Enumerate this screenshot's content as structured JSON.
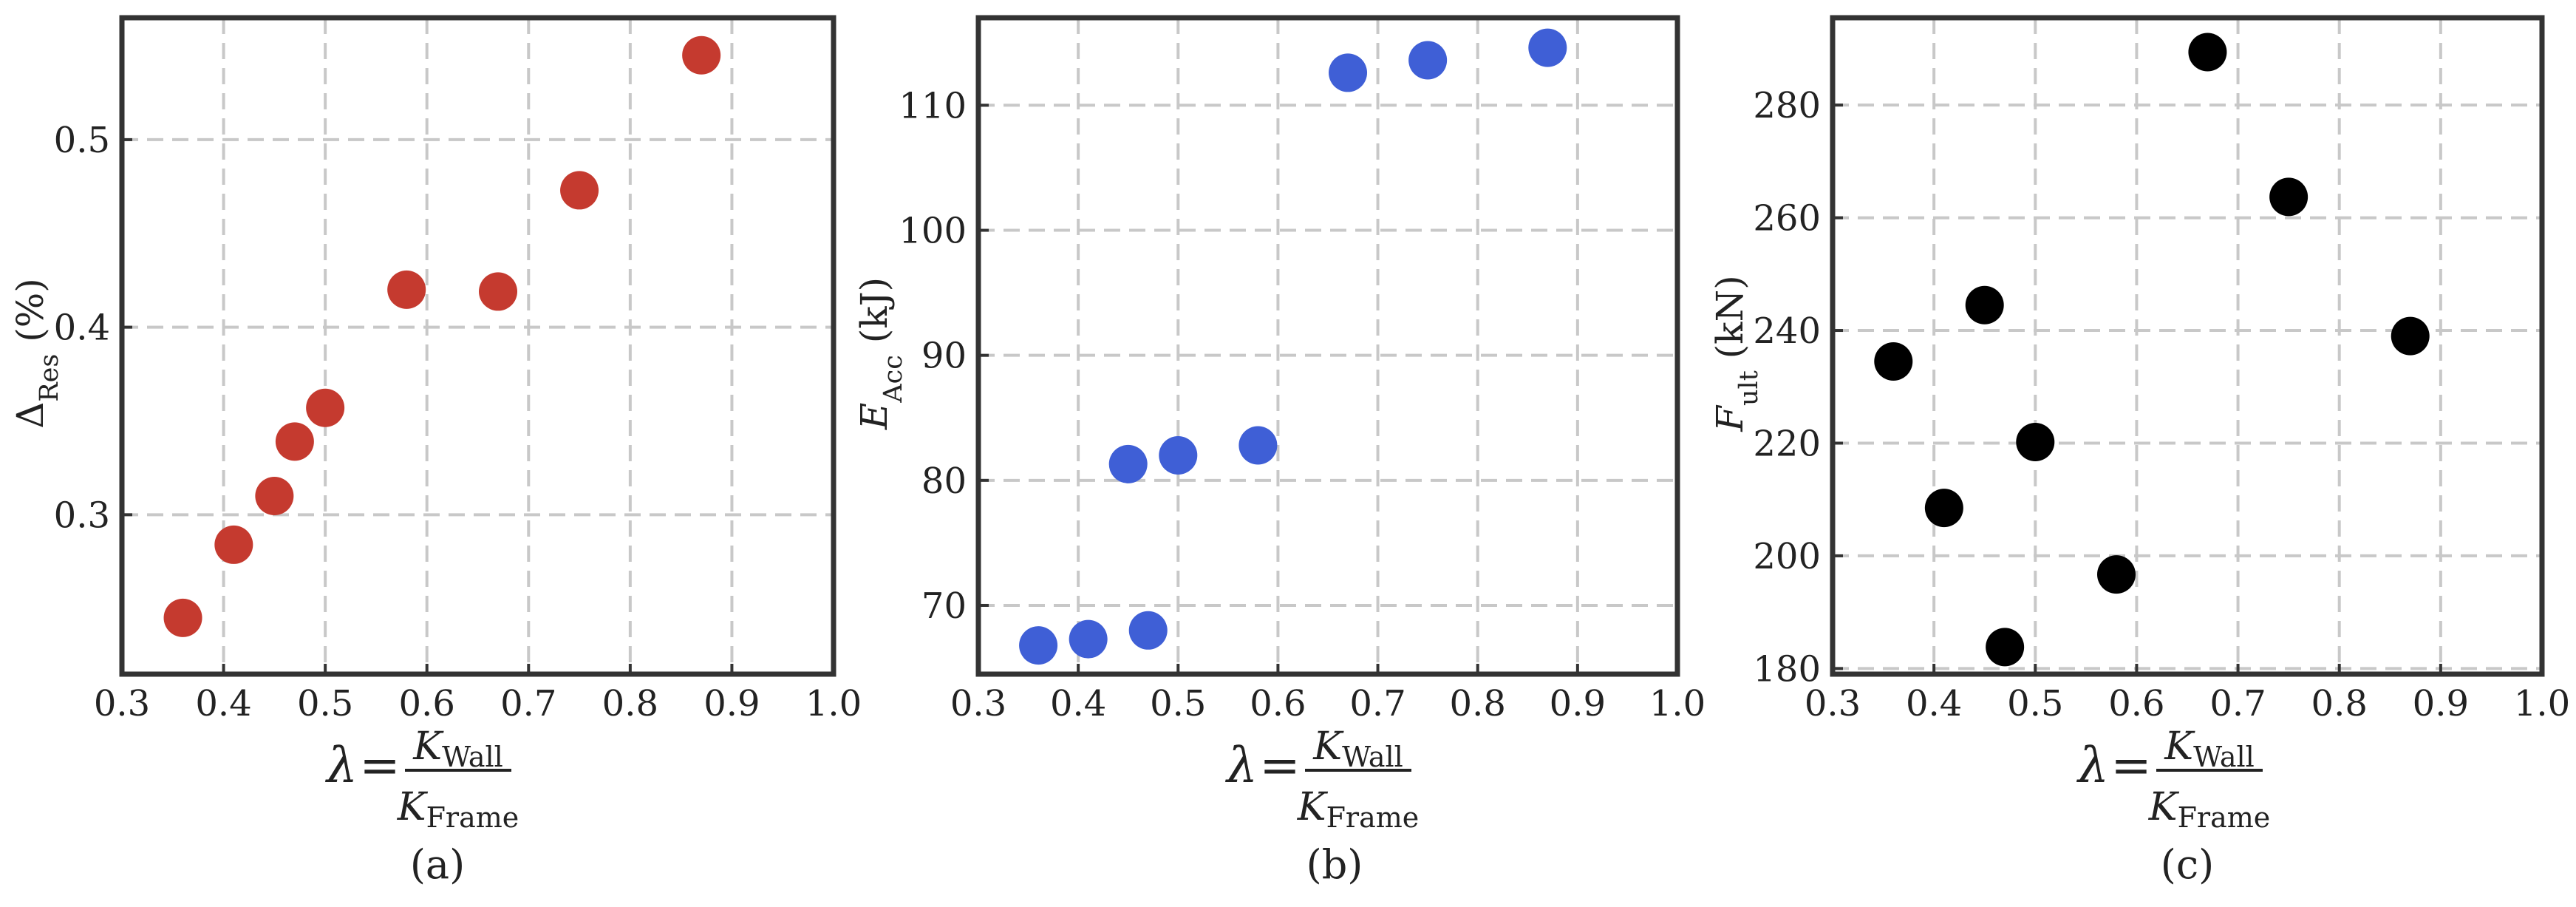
{
  "figure": {
    "xlabel": {
      "lambda": "λ",
      "equals": "=",
      "numerator": {
        "symbol": "K",
        "subscript": "Wall"
      },
      "denominator": {
        "symbol": "K",
        "subscript": "Frame"
      }
    },
    "panels": [
      {
        "caption": "(a)",
        "ylabel": {
          "symbol": "Δ",
          "subscript": "Res",
          "unit": " (%)"
        },
        "marker_color": "#c53a2f"
      },
      {
        "caption": "(b)",
        "ylabel": {
          "symbol": "E",
          "subscript": "Acc",
          "unit": " (kJ)"
        },
        "marker_color": "#3f5fd6"
      },
      {
        "caption": "(c)",
        "ylabel": {
          "symbol": "F",
          "subscript": "ult",
          "unit": " (kN)"
        },
        "marker_color": "#000000"
      }
    ]
  },
  "chart_data": [
    {
      "type": "scatter",
      "xlabel": "λ = K_Wall / K_Frame",
      "ylabel": "Δ_Res (%)",
      "x": [
        0.36,
        0.41,
        0.45,
        0.47,
        0.5,
        0.58,
        0.67,
        0.75,
        0.87
      ],
      "y": [
        0.245,
        0.284,
        0.31,
        0.339,
        0.357,
        0.42,
        0.419,
        0.473,
        0.545
      ],
      "xlim": [
        0.3,
        1.0
      ],
      "ylim": [
        0.215,
        0.565
      ],
      "xticks": [
        0.3,
        0.4,
        0.5,
        0.6,
        0.7,
        0.8,
        0.9,
        1.0
      ],
      "yticks": [
        0.3,
        0.4,
        0.5
      ],
      "grid": true,
      "marker_color": "#c53a2f"
    },
    {
      "type": "scatter",
      "xlabel": "λ = K_Wall / K_Frame",
      "ylabel": "E_Acc (kJ)",
      "x": [
        0.36,
        0.41,
        0.45,
        0.47,
        0.5,
        0.58,
        0.67,
        0.75,
        0.87
      ],
      "y": [
        66.8,
        67.3,
        81.3,
        68.0,
        82.0,
        82.8,
        112.6,
        113.6,
        114.6
      ],
      "xlim": [
        0.3,
        1.0
      ],
      "ylim": [
        64.5,
        117.0
      ],
      "xticks": [
        0.3,
        0.4,
        0.5,
        0.6,
        0.7,
        0.8,
        0.9,
        1.0
      ],
      "yticks": [
        70,
        80,
        90,
        100,
        110
      ],
      "grid": true,
      "marker_color": "#3f5fd6"
    },
    {
      "type": "scatter",
      "xlabel": "λ = K_Wall / K_Frame",
      "ylabel": "F_ult (kN)",
      "x": [
        0.36,
        0.41,
        0.45,
        0.47,
        0.5,
        0.58,
        0.67,
        0.75,
        0.87
      ],
      "y": [
        234.5,
        208.5,
        244.5,
        183.8,
        220.2,
        196.7,
        289.4,
        263.7,
        239.0
      ],
      "xlim": [
        0.3,
        1.0
      ],
      "ylim": [
        179.0,
        295.5
      ],
      "xticks": [
        0.3,
        0.4,
        0.5,
        0.6,
        0.7,
        0.8,
        0.9,
        1.0
      ],
      "yticks": [
        180,
        200,
        220,
        240,
        260,
        280
      ],
      "grid": true,
      "marker_color": "#000000"
    }
  ]
}
